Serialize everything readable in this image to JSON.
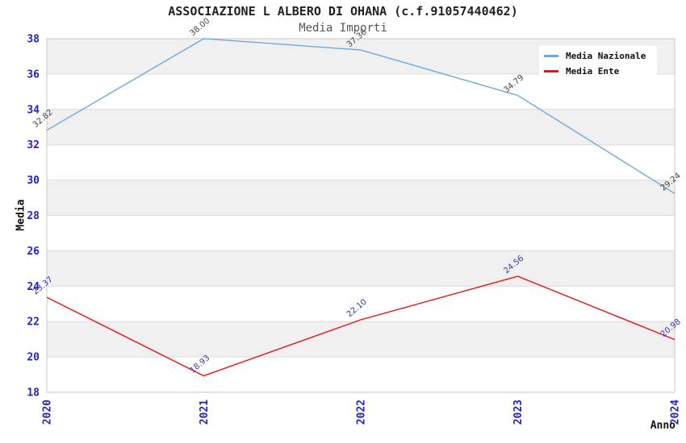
{
  "chart_data": {
    "type": "line",
    "title": "ASSOCIAZIONE L ALBERO DI OHANA (c.f.91057440462)",
    "subtitle": "Media Importi",
    "xlabel": "Anno",
    "ylabel": "Media",
    "categories": [
      "2020",
      "2021",
      "2022",
      "2023",
      "2024"
    ],
    "series": [
      {
        "name": "Media Nazionale",
        "color": "#6fa8dc",
        "label_color": "#444444",
        "values": [
          32.82,
          38.0,
          37.36,
          34.79,
          29.24
        ]
      },
      {
        "name": "Media Ente",
        "color": "#ee1111",
        "label_color": "#3737a8",
        "values": [
          23.37,
          18.93,
          22.1,
          24.56,
          20.98
        ]
      }
    ],
    "ylim": [
      18,
      38
    ],
    "ytick_step": 2,
    "grid": "horizontal-bands",
    "band_colors": [
      "#ffffff",
      "#f0f0f0"
    ],
    "gridline_color": "#dcdcdc",
    "border_color": "#c9c9c9",
    "axis_tick_color": "#2222cc",
    "legend_position": "top-right",
    "data_label_decimals": 2
  }
}
